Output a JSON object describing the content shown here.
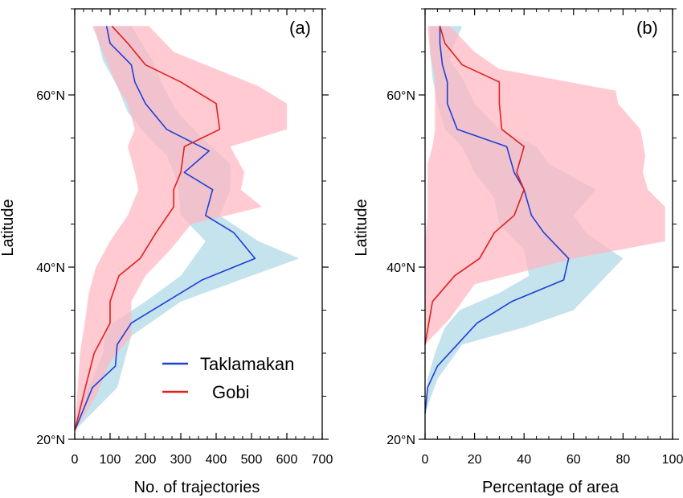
{
  "chart_data": [
    {
      "type": "line",
      "panel_label": "(a)",
      "xlabel": "No. of trajectories",
      "ylabel": "Latitude",
      "xlim": [
        0,
        700
      ],
      "ylim": [
        20,
        70
      ],
      "xticks": [
        0,
        100,
        200,
        300,
        400,
        500,
        600,
        700
      ],
      "yticks": [
        20,
        40,
        60
      ],
      "ytick_labels": [
        "20°N",
        "40°N",
        "60°N"
      ],
      "series": [
        {
          "name": "Taklamakan",
          "color": "#1f3fd6",
          "band_color": "#add8e6",
          "line": [
            [
              0,
              21
            ],
            [
              50,
              26
            ],
            [
              115,
              28.5
            ],
            [
              120,
              31
            ],
            [
              160,
              33.5
            ],
            [
              360,
              38.5
            ],
            [
              510,
              41
            ],
            [
              450,
              44
            ],
            [
              370,
              46
            ],
            [
              390,
              49
            ],
            [
              310,
              51
            ],
            [
              380,
              53.5
            ],
            [
              260,
              56
            ],
            [
              200,
              59
            ],
            [
              170,
              61.5
            ],
            [
              160,
              63.5
            ],
            [
              100,
              66
            ],
            [
              90,
              68
            ]
          ],
          "band_low": [
            [
              0,
              21
            ],
            [
              10,
              24
            ],
            [
              50,
              27
            ],
            [
              80,
              30
            ],
            [
              90,
              33
            ],
            [
              200,
              36
            ],
            [
              300,
              39
            ],
            [
              370,
              43
            ],
            [
              300,
              46
            ],
            [
              290,
              50
            ],
            [
              260,
              53
            ],
            [
              210,
              55
            ],
            [
              150,
              58
            ],
            [
              120,
              61
            ],
            [
              80,
              64
            ],
            [
              55,
              68
            ]
          ],
          "band_high": [
            [
              0,
              21
            ],
            [
              120,
              26
            ],
            [
              140,
              29
            ],
            [
              160,
              32
            ],
            [
              300,
              36
            ],
            [
              500,
              39
            ],
            [
              635,
              41
            ],
            [
              520,
              43
            ],
            [
              410,
              46
            ],
            [
              440,
              49
            ],
            [
              440,
              52
            ],
            [
              360,
              55
            ],
            [
              290,
              58
            ],
            [
              250,
              61
            ],
            [
              220,
              64
            ],
            [
              160,
              68
            ]
          ]
        },
        {
          "name": "Gobi",
          "color": "#e0201c",
          "band_color": "#ffb6c1",
          "line": [
            [
              0,
              21
            ],
            [
              30,
              26
            ],
            [
              55,
              30
            ],
            [
              100,
              33.5
            ],
            [
              100,
              36
            ],
            [
              125,
              39
            ],
            [
              185,
              41
            ],
            [
              230,
              44
            ],
            [
              280,
              47
            ],
            [
              280,
              49
            ],
            [
              300,
              51
            ],
            [
              310,
              54
            ],
            [
              410,
              56
            ],
            [
              400,
              59
            ],
            [
              300,
              61.5
            ],
            [
              200,
              63.5
            ],
            [
              150,
              66
            ],
            [
              105,
              68
            ]
          ],
          "band_low": [
            [
              0,
              21
            ],
            [
              5,
              24
            ],
            [
              10,
              27
            ],
            [
              15,
              30
            ],
            [
              30,
              34
            ],
            [
              40,
              37
            ],
            [
              60,
              40
            ],
            [
              100,
              43
            ],
            [
              150,
              46
            ],
            [
              180,
              49
            ],
            [
              170,
              51
            ],
            [
              150,
              54
            ],
            [
              170,
              56
            ],
            [
              150,
              59
            ],
            [
              120,
              61
            ],
            [
              90,
              64
            ],
            [
              50,
              68
            ]
          ],
          "band_high": [
            [
              0,
              21
            ],
            [
              60,
              25
            ],
            [
              100,
              29
            ],
            [
              160,
              32
            ],
            [
              160,
              36
            ],
            [
              200,
              39
            ],
            [
              270,
              42
            ],
            [
              330,
              45
            ],
            [
              530,
              47
            ],
            [
              470,
              49
            ],
            [
              480,
              51
            ],
            [
              440,
              54
            ],
            [
              600,
              56
            ],
            [
              600,
              59
            ],
            [
              520,
              61
            ],
            [
              400,
              63
            ],
            [
              280,
              65
            ],
            [
              210,
              68
            ]
          ]
        }
      ],
      "legend": {
        "position": "inside-lower-right",
        "entries": [
          "Taklamakan",
          "Gobi"
        ]
      }
    },
    {
      "type": "line",
      "panel_label": "(b)",
      "xlabel": "Percentage of area",
      "ylabel": "Latitude",
      "xlim": [
        0,
        100
      ],
      "ylim": [
        20,
        70
      ],
      "xticks": [
        0,
        20,
        40,
        60,
        80,
        100
      ],
      "yticks": [
        20,
        40,
        60
      ],
      "ytick_labels": [
        "20°N",
        "40°N",
        "60°N"
      ],
      "series": [
        {
          "name": "Taklamakan",
          "color": "#1f3fd6",
          "band_color": "#add8e6",
          "line": [
            [
              0,
              23
            ],
            [
              1,
              26
            ],
            [
              5,
              28.5
            ],
            [
              13,
              31
            ],
            [
              21,
              33.5
            ],
            [
              35,
              36
            ],
            [
              56,
              38.5
            ],
            [
              58,
              41
            ],
            [
              48,
              44
            ],
            [
              43,
              46
            ],
            [
              40,
              49
            ],
            [
              36,
              51
            ],
            [
              33,
              54
            ],
            [
              13,
              56
            ],
            [
              9,
              59
            ],
            [
              9,
              61.5
            ],
            [
              7,
              63.5
            ],
            [
              6,
              66
            ],
            [
              6,
              68
            ]
          ],
          "band_low": [
            [
              0,
              23
            ],
            [
              1,
              27
            ],
            [
              4,
              30
            ],
            [
              8,
              33
            ],
            [
              14,
              35
            ],
            [
              30,
              37
            ],
            [
              42,
              39
            ],
            [
              40,
              42
            ],
            [
              30,
              45
            ],
            [
              28,
              48
            ],
            [
              20,
              51
            ],
            [
              15,
              54
            ],
            [
              8,
              56
            ],
            [
              5,
              59
            ],
            [
              3,
              62
            ],
            [
              2,
              65
            ],
            [
              2,
              68
            ]
          ],
          "band_high": [
            [
              0,
              23
            ],
            [
              5,
              27
            ],
            [
              15,
              31
            ],
            [
              40,
              33
            ],
            [
              60,
              35
            ],
            [
              70,
              38
            ],
            [
              80,
              41
            ],
            [
              65,
              44
            ],
            [
              60,
              46
            ],
            [
              69,
              49
            ],
            [
              50,
              52
            ],
            [
              45,
              54
            ],
            [
              30,
              56
            ],
            [
              20,
              59
            ],
            [
              15,
              62
            ],
            [
              10,
              64
            ],
            [
              12,
              66
            ],
            [
              15,
              68
            ]
          ]
        },
        {
          "name": "Gobi",
          "color": "#e0201c",
          "band_color": "#ffb6c1",
          "line": [
            [
              0,
              31
            ],
            [
              3,
              36
            ],
            [
              12,
              39
            ],
            [
              22,
              41
            ],
            [
              28,
              44
            ],
            [
              36,
              46
            ],
            [
              40,
              49
            ],
            [
              37,
              51
            ],
            [
              40,
              54
            ],
            [
              31,
              56
            ],
            [
              30,
              59
            ],
            [
              30,
              61.5
            ],
            [
              15,
              63.5
            ],
            [
              8,
              66
            ],
            [
              6,
              68
            ]
          ],
          "band_low": [
            [
              0,
              31
            ],
            [
              0,
              34
            ],
            [
              0,
              37
            ],
            [
              0,
              40
            ],
            [
              0,
              43
            ],
            [
              1,
              46
            ],
            [
              1,
              49
            ],
            [
              1,
              52
            ],
            [
              3,
              54
            ],
            [
              4,
              56
            ],
            [
              4,
              59
            ],
            [
              4,
              62
            ],
            [
              2,
              65
            ],
            [
              1,
              68
            ]
          ],
          "band_high": [
            [
              0,
              31
            ],
            [
              10,
              34
            ],
            [
              20,
              38
            ],
            [
              60,
              41
            ],
            [
              97,
              43
            ],
            [
              97,
              47
            ],
            [
              90,
              49
            ],
            [
              88,
              51
            ],
            [
              89,
              53
            ],
            [
              87,
              56
            ],
            [
              78,
              59
            ],
            [
              77,
              60.5
            ],
            [
              30,
              63
            ],
            [
              20,
              65
            ],
            [
              10,
              68
            ]
          ]
        }
      ]
    }
  ]
}
